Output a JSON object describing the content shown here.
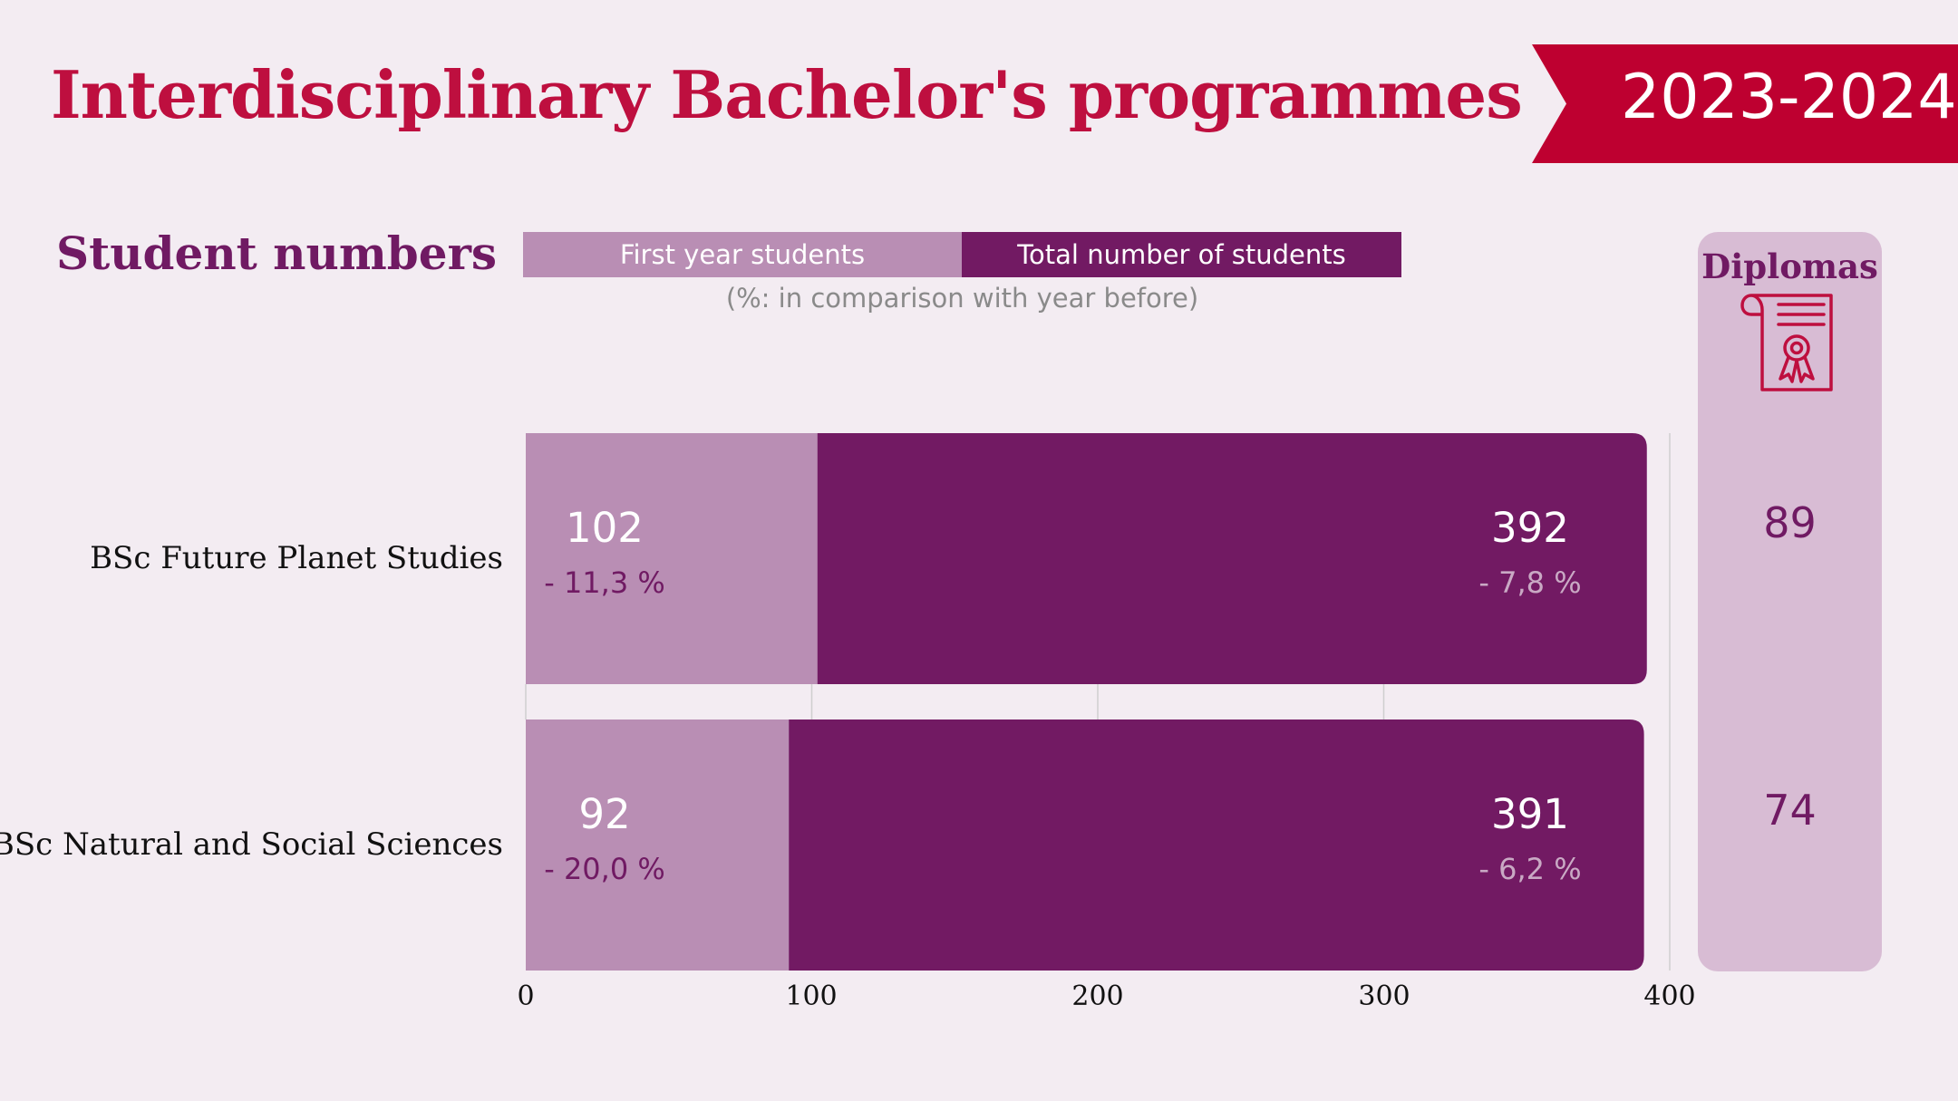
{
  "title": "Interdisciplinary Bachelor's programmes",
  "year": "2023-2024",
  "section_title": "Student numbers",
  "legend": {
    "first_year": "First year students",
    "total": "Total number of students",
    "note": "(%: in comparison with year before)"
  },
  "diplomas": {
    "title": "Diplomas",
    "icon": "diploma-certificate-icon",
    "values": [
      "89",
      "74"
    ]
  },
  "colors": {
    "title": "#be0f3f",
    "ribbon": "#be0030",
    "first_year": "#b98eb4",
    "total": "#721a63",
    "panel": "#d8bcd4",
    "background": "#f3ecf2"
  },
  "chart_data": {
    "type": "bar",
    "orientation": "horizontal",
    "categories": [
      "BSc Future Planet Studies",
      "BSc Natural and Social Sciences"
    ],
    "series": [
      {
        "name": "First year students",
        "values": [
          102,
          92
        ],
        "labels": [
          "102",
          "92"
        ],
        "change_labels": [
          "- 11,3 %",
          "- 20,0 %"
        ]
      },
      {
        "name": "Total number of students",
        "values": [
          392,
          391
        ],
        "labels": [
          "392",
          "391"
        ],
        "change_labels": [
          "- 7,8 %",
          "- 6,2 %"
        ]
      }
    ],
    "xlim": [
      0,
      400
    ],
    "xticks": [
      "0",
      "100",
      "200",
      "300",
      "400"
    ],
    "grid": true,
    "legend_position": "top"
  }
}
